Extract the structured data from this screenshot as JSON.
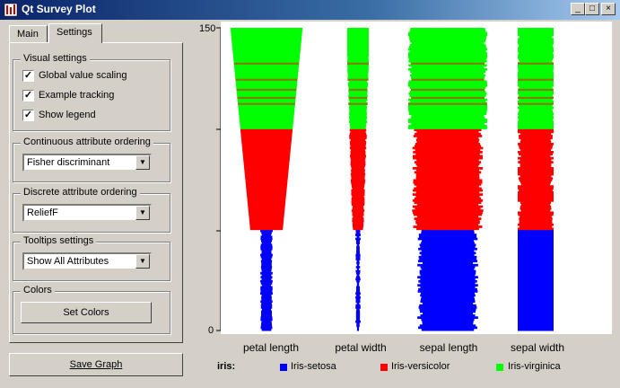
{
  "window": {
    "title": "Qt Survey Plot",
    "controls": [
      "_",
      "□",
      "×"
    ]
  },
  "tabs": [
    {
      "label": "Main"
    },
    {
      "label": "Settings"
    }
  ],
  "visual_settings": {
    "label": "Visual settings",
    "global_value_scaling": "Global value scaling",
    "example_tracking": "Example tracking",
    "show_legend": "Show legend"
  },
  "continuous_ordering": {
    "label": "Continuous attribute ordering",
    "value": "Fisher discriminant"
  },
  "discrete_ordering": {
    "label": "Discrete attribute ordering",
    "value": "ReliefF"
  },
  "tooltips": {
    "label": "Tooltips settings",
    "value": "Show All Attributes"
  },
  "colors": {
    "label": "Colors",
    "set_colors": "Set Colors"
  },
  "save_graph": "Save Graph",
  "chart_data": {
    "type": "survey",
    "y_ticks": [
      "150",
      "0"
    ],
    "ylim": [
      0,
      150
    ],
    "attributes": [
      "petal length",
      "petal width",
      "sepal length",
      "sepal width"
    ],
    "legend_title": "iris:",
    "classes": [
      {
        "name": "Iris-setosa",
        "color": "#0000ff",
        "start": 0,
        "end": 50
      },
      {
        "name": "Iris-versicolor",
        "color": "#ff0000",
        "start": 50,
        "end": 100
      },
      {
        "name": "Iris-virginica",
        "color": "#00ff00",
        "start": 100,
        "end": 150
      }
    ],
    "tracking_color": "#808000"
  }
}
